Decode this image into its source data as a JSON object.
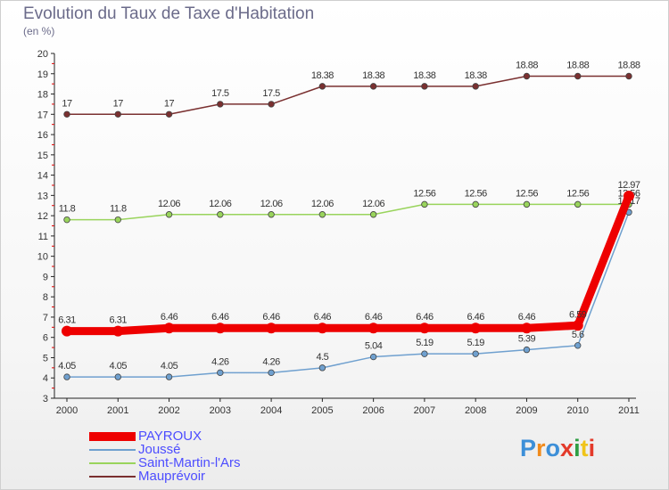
{
  "title": "Evolution du Taux de Taxe d'Habitation",
  "subtitle": "(en %)",
  "logo": "Proxiti",
  "chart_data": {
    "type": "line",
    "title": "Evolution du Taux de Taxe d'Habitation",
    "ylabel": "(en %)",
    "x": [
      "2000",
      "2001",
      "2002",
      "2003",
      "2004",
      "2005",
      "2006",
      "2007",
      "2008",
      "2009",
      "2010",
      "2011"
    ],
    "ylim": [
      3,
      20
    ],
    "yticks": [
      3,
      4,
      5,
      6,
      7,
      8,
      9,
      10,
      11,
      12,
      13,
      14,
      15,
      16,
      17,
      18,
      19,
      20
    ],
    "grid": false,
    "legend_position": "bottom-left",
    "series": [
      {
        "name": "PAYROUX",
        "color": "#ee0000",
        "values": [
          6.31,
          6.31,
          6.46,
          6.46,
          6.46,
          6.46,
          6.46,
          6.46,
          6.46,
          6.46,
          6.59,
          12.97
        ],
        "labels": [
          "6.31",
          "6.31",
          "6.46",
          "6.46",
          "6.46",
          "6.46",
          "6.46",
          "6.46",
          "6.46",
          "6.46",
          "6.59",
          "12.97"
        ]
      },
      {
        "name": "Joussé",
        "color": "#6fa0cf",
        "values": [
          4.05,
          4.05,
          4.05,
          4.26,
          4.26,
          4.5,
          5.04,
          5.19,
          5.19,
          5.39,
          5.6,
          12.17
        ],
        "labels": [
          "4.05",
          "4.05",
          "4.05",
          "4.26",
          "4.26",
          "4.5",
          "5.04",
          "5.19",
          "5.19",
          "5.39",
          "5.6",
          "12.17"
        ]
      },
      {
        "name": "Saint-Martin-l'Ars",
        "color": "#99d45c",
        "values": [
          11.8,
          11.8,
          12.06,
          12.06,
          12.06,
          12.06,
          12.06,
          12.56,
          12.56,
          12.56,
          12.56,
          12.56
        ],
        "labels": [
          "11.8",
          "11.8",
          "12.06",
          "12.06",
          "12.06",
          "12.06",
          "12.06",
          "12.56",
          "12.56",
          "12.56",
          "12.56",
          "12.56"
        ]
      },
      {
        "name": "Mauprévoir",
        "color": "#7a3030",
        "values": [
          17,
          17,
          17,
          17.5,
          17.5,
          18.38,
          18.38,
          18.38,
          18.38,
          18.88,
          18.88,
          18.88
        ],
        "labels": [
          "17",
          "17",
          "17",
          "17.5",
          "17.5",
          "18.38",
          "18.38",
          "18.38",
          "18.38",
          "18.88",
          "18.88",
          "18.88"
        ]
      }
    ]
  }
}
